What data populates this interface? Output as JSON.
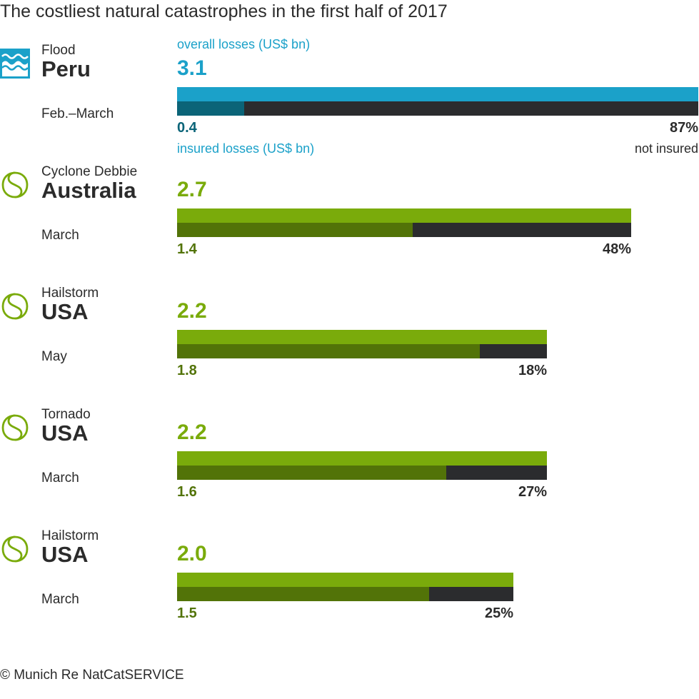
{
  "title": "The costliest natural catastrophes in the first half of 2017",
  "source": "© Munich Re NatCatSERVICE",
  "captions": {
    "overall_losses": "overall losses (US$ bn)",
    "insured_losses": "insured losses (US$ bn)",
    "not_insured": "not insured"
  },
  "colors": {
    "flood_overall": "#1ba1c9",
    "flood_insured": "#0b6478",
    "storm_overall": "#7aab0b",
    "storm_insured": "#527308",
    "uninsured": "#2b2c2e",
    "text": "#2b2b2b"
  },
  "chart_data": {
    "type": "bar",
    "orientation": "horizontal",
    "title": "The costliest natural catastrophes in the first half of 2017",
    "units": "US$ bn",
    "xlim": [
      0,
      3.1
    ],
    "series": [
      {
        "name": "overall losses (US$ bn)",
        "values": [
          3.1,
          2.7,
          2.2,
          2.2,
          2.0
        ]
      },
      {
        "name": "insured losses (US$ bn)",
        "values": [
          0.4,
          1.4,
          1.8,
          1.6,
          1.5
        ]
      }
    ],
    "events": [
      {
        "type": "Flood",
        "country": "Peru",
        "date": "Feb.–March",
        "category": "flood",
        "icon": "flood-icon",
        "overall": 3.1,
        "overall_label": "3.1",
        "insured": 0.4,
        "insured_label": "0.4",
        "not_insured_label": "87%"
      },
      {
        "type": "Cyclone Debbie",
        "country": "Australia",
        "date": "March",
        "category": "storm",
        "icon": "storm-icon",
        "overall": 2.7,
        "overall_label": "2.7",
        "insured": 1.4,
        "insured_label": "1.4",
        "not_insured_label": "48%"
      },
      {
        "type": "Hailstorm",
        "country": "USA",
        "date": "May",
        "category": "storm",
        "icon": "storm-icon",
        "overall": 2.2,
        "overall_label": "2.2",
        "insured": 1.8,
        "insured_label": "1.8",
        "not_insured_label": "18%"
      },
      {
        "type": "Tornado",
        "country": "USA",
        "date": "March",
        "category": "storm",
        "icon": "storm-icon",
        "overall": 2.2,
        "overall_label": "2.2",
        "insured": 1.6,
        "insured_label": "1.6",
        "not_insured_label": "27%"
      },
      {
        "type": "Hailstorm",
        "country": "USA",
        "date": "March",
        "category": "storm",
        "icon": "storm-icon",
        "overall": 2.0,
        "overall_label": "2.0",
        "insured": 1.5,
        "insured_label": "1.5",
        "not_insured_label": "25%"
      }
    ]
  }
}
